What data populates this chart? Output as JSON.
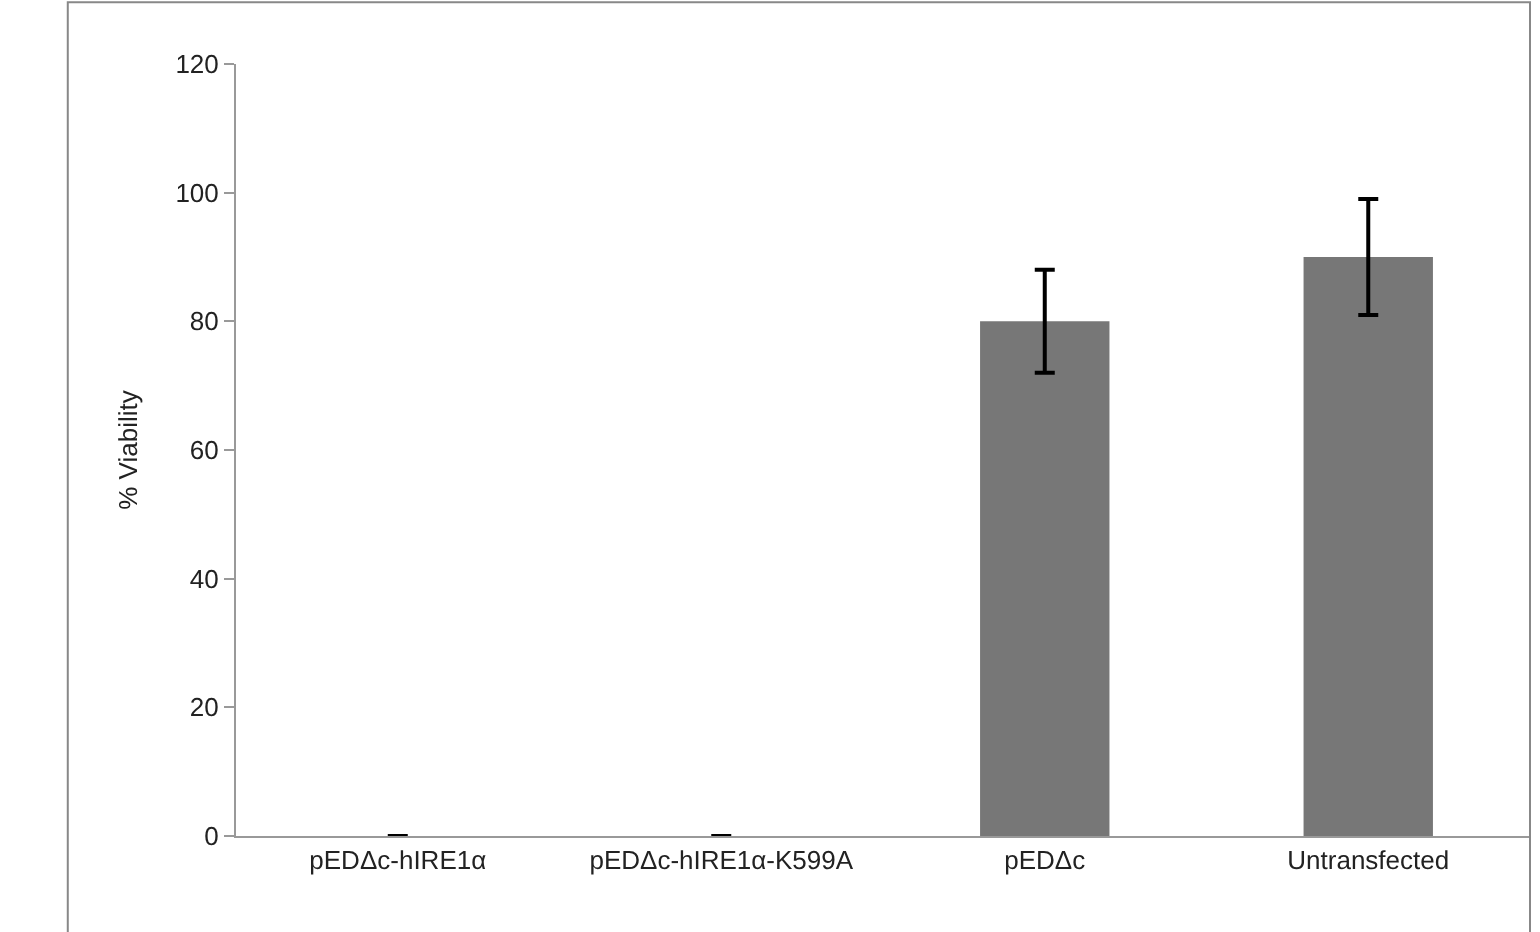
{
  "chart_data": {
    "type": "bar",
    "ylabel": "% Viability",
    "categories": [
      "pEDΔc-hIRE1α",
      "pEDΔc-hIRE1α-K599A",
      "pEDΔc",
      "Untransfected"
    ],
    "values": [
      0,
      0,
      80,
      90
    ],
    "errors": [
      null,
      null,
      8,
      9
    ],
    "color": "#777777",
    "ylim": [
      0,
      120
    ],
    "yticks": [
      0,
      20,
      40,
      60,
      80,
      100,
      120
    ]
  }
}
